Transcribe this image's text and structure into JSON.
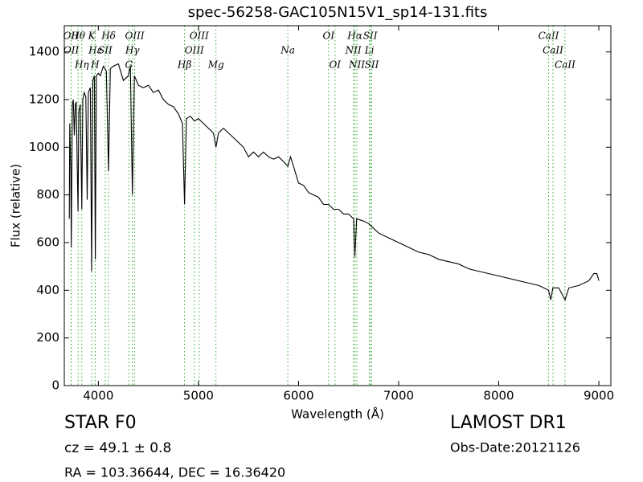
{
  "chart_data": {
    "type": "line",
    "title": "spec-56258-GAC105N15V1_sp14-131.fits",
    "xlabel": "Wavelength (Å)",
    "ylabel": "Flux (relative)",
    "xlim": [
      3660,
      9120
    ],
    "ylim": [
      0,
      1510
    ],
    "xticks": [
      4000,
      5000,
      6000,
      7000,
      8000,
      9000
    ],
    "yticks": [
      0,
      200,
      400,
      600,
      800,
      1000,
      1200,
      1400
    ],
    "line_color": "#000000",
    "marker_color": "#33aa33",
    "series": [
      {
        "x": [
          3710,
          3715,
          3725,
          3730,
          3740,
          3750,
          3760,
          3770,
          3780,
          3790,
          3797,
          3805,
          3820,
          3835,
          3845,
          3860,
          3875,
          3889,
          3900,
          3920,
          3933,
          3945,
          3960,
          3970,
          3980,
          4000,
          4020,
          4050,
          4080,
          4102,
          4120,
          4150,
          4200,
          4250,
          4300,
          4320,
          4340,
          4360,
          4400,
          4450,
          4500,
          4550,
          4600,
          4650,
          4700,
          4750,
          4800,
          4840,
          4861,
          4880,
          4920,
          4960,
          5000,
          5050,
          5100,
          5150,
          5175,
          5200,
          5250,
          5300,
          5350,
          5400,
          5450,
          5500,
          5550,
          5600,
          5650,
          5700,
          5750,
          5800,
          5850,
          5893,
          5920,
          5950,
          6000,
          6050,
          6100,
          6150,
          6200,
          6250,
          6300,
          6350,
          6400,
          6450,
          6500,
          6550,
          6563,
          6580,
          6650,
          6700,
          6750,
          6800,
          6900,
          7000,
          7100,
          7200,
          7300,
          7400,
          7500,
          7600,
          7700,
          7800,
          7900,
          8000,
          8100,
          8200,
          8300,
          8400,
          8498,
          8520,
          8540,
          8600,
          8662,
          8700,
          8800,
          8900,
          8950,
          8980,
          9000
        ],
        "values": [
          700,
          1100,
          900,
          580,
          1180,
          1200,
          1050,
          1180,
          1190,
          900,
          730,
          1150,
          1180,
          740,
          1200,
          1230,
          1210,
          780,
          1230,
          1250,
          480,
          1280,
          1300,
          530,
          1300,
          1310,
          1300,
          1340,
          1320,
          900,
          1330,
          1340,
          1350,
          1280,
          1300,
          1340,
          800,
          1300,
          1260,
          1250,
          1260,
          1230,
          1240,
          1200,
          1180,
          1170,
          1140,
          1100,
          760,
          1120,
          1130,
          1110,
          1120,
          1100,
          1080,
          1060,
          1000,
          1060,
          1080,
          1060,
          1040,
          1020,
          1000,
          960,
          980,
          960,
          980,
          960,
          950,
          960,
          940,
          920,
          960,
          920,
          850,
          840,
          810,
          800,
          790,
          760,
          760,
          740,
          740,
          720,
          720,
          700,
          540,
          700,
          690,
          680,
          660,
          640,
          620,
          600,
          580,
          560,
          550,
          530,
          520,
          510,
          490,
          480,
          470,
          460,
          450,
          440,
          430,
          420,
          400,
          360,
          410,
          410,
          360,
          410,
          420,
          440,
          470,
          470,
          440
        ]
      }
    ],
    "lines": [
      {
        "label": "Hθ",
        "x": 3798
      },
      {
        "label": "K",
        "x": 3934
      },
      {
        "label": "Hδ",
        "x": 4102
      },
      {
        "label": "OIII",
        "x": 4363
      },
      {
        "label": "OIII",
        "x": 5007
      },
      {
        "label": "OI",
        "x": 6300
      },
      {
        "label": "Hα",
        "x": 6563
      },
      {
        "label": "SII",
        "x": 6716
      },
      {
        "label": "CaII",
        "x": 8498
      },
      {
        "label": "OII",
        "x": 3727
      },
      {
        "label": "Hε",
        "x": 3970
      },
      {
        "label": "SII",
        "x": 4069
      },
      {
        "label": "Hγ",
        "x": 4340
      },
      {
        "label": "OIII",
        "x": 4959
      },
      {
        "label": "Na",
        "x": 5893
      },
      {
        "label": "NII",
        "x": 6548
      },
      {
        "label": "Li",
        "x": 6708
      },
      {
        "label": "CaII",
        "x": 8542
      },
      {
        "label": "OII",
        "x": 3729
      },
      {
        "label": "Hη",
        "x": 3835
      },
      {
        "label": "H",
        "x": 3968
      },
      {
        "label": "G",
        "x": 4305
      },
      {
        "label": "Hβ",
        "x": 4861
      },
      {
        "label": "Mg",
        "x": 5175
      },
      {
        "label": "OI",
        "x": 6364
      },
      {
        "label": "NII",
        "x": 6583
      },
      {
        "label": "SII",
        "x": 6731
      },
      {
        "label": "CaII",
        "x": 8662
      }
    ]
  },
  "footer": {
    "object": "STAR   F0",
    "redshift": "cz = 49.1 ± 0.8",
    "coords": "RA = 103.36644, DEC = 16.36420",
    "survey": "LAMOST DR1",
    "date": "Obs-Date:20121126"
  }
}
